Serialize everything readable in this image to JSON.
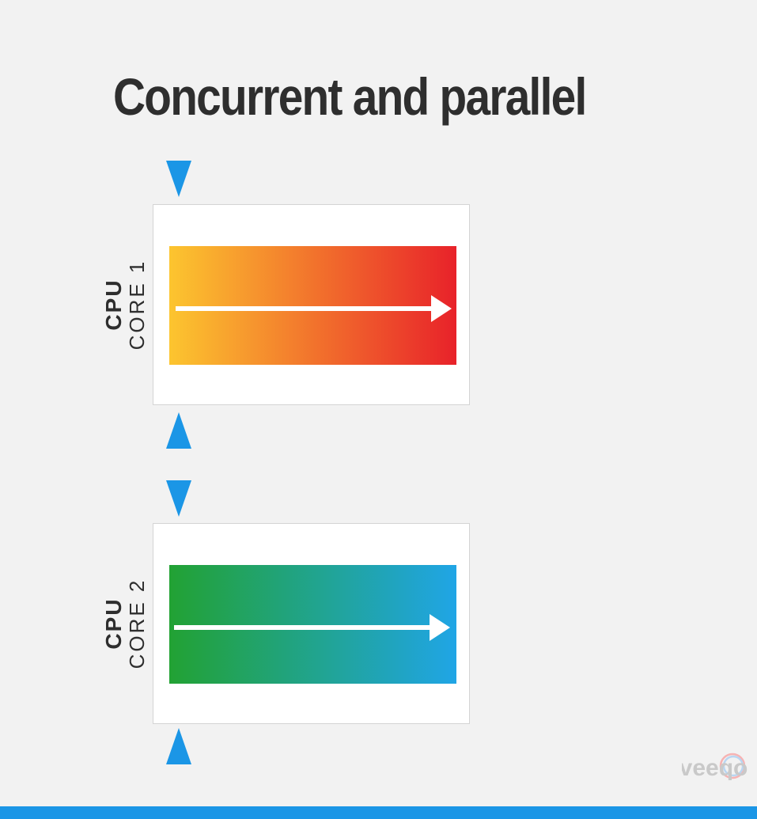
{
  "title": "Concurrent and parallel",
  "cores": [
    {
      "cpu_label": "CPU",
      "core_label": "CORE 1",
      "gradient": [
        "#fcc52f",
        "#e8222a"
      ]
    },
    {
      "cpu_label": "CPU",
      "core_label": "CORE 2",
      "gradient": [
        "#22a233",
        "#20a5e6"
      ]
    }
  ],
  "marker_color": "#1b96e6",
  "logo_text": "veeqo"
}
